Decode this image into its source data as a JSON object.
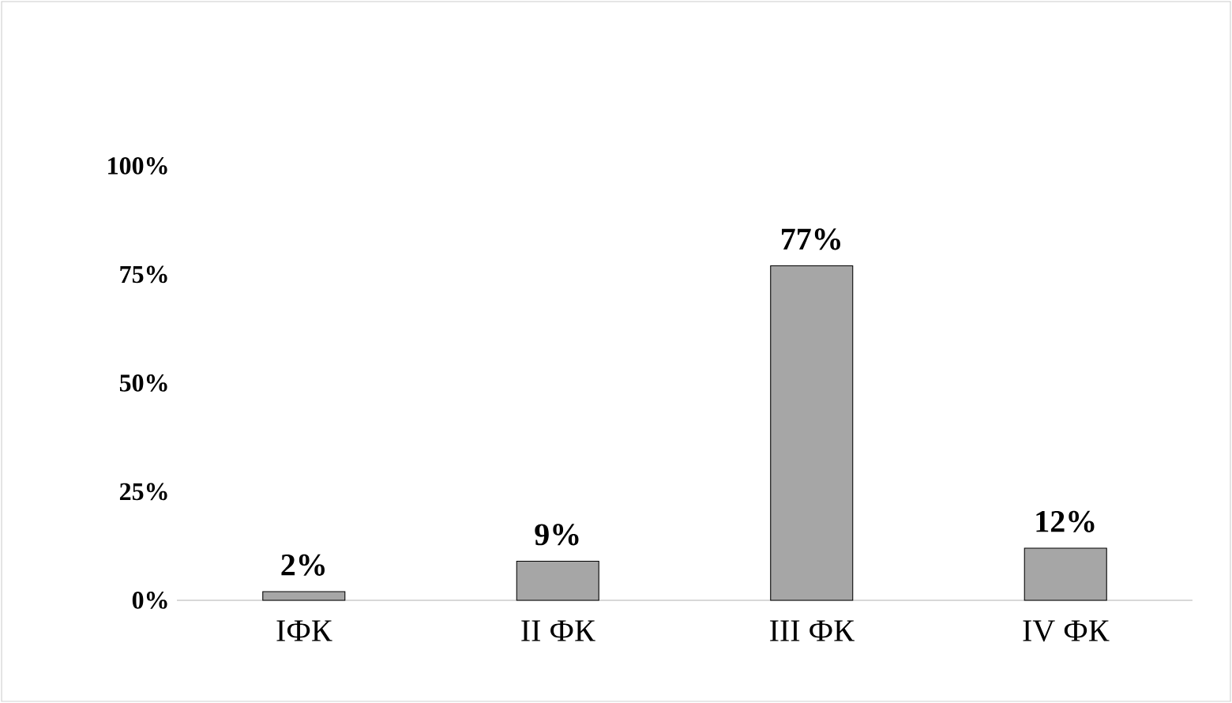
{
  "chart_data": {
    "type": "bar",
    "categories": [
      "IФК",
      "II ФК",
      "III ФК",
      "IV ФК"
    ],
    "values": [
      2,
      9,
      77,
      12
    ],
    "value_labels": [
      "2%",
      "9%",
      "77%",
      "12%"
    ],
    "color": "#a6a6a6",
    "ylim": [
      0,
      100
    ],
    "yticks": [
      {
        "value": 0,
        "label": "0%"
      },
      {
        "value": 25,
        "label": "25%"
      },
      {
        "value": 50,
        "label": "50%"
      },
      {
        "value": 75,
        "label": "75%"
      },
      {
        "value": 100,
        "label": "100%"
      }
    ],
    "grid": false
  }
}
